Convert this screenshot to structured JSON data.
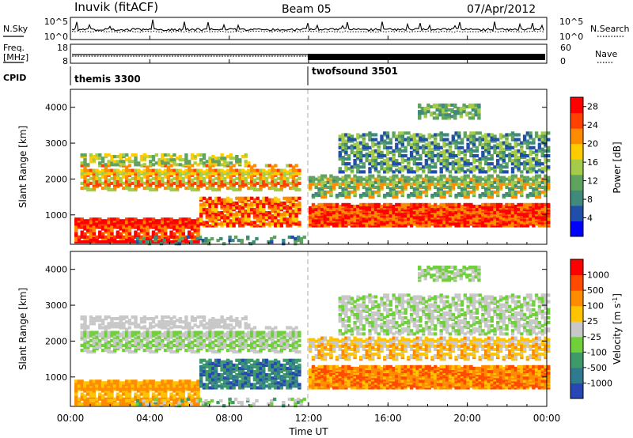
{
  "header": {
    "station": "Inuvik (fitACF)",
    "beam": "Beam 05",
    "date": "07/Apr/2012"
  },
  "labels": {
    "nsky": "N.Sky",
    "nsearch": "N.Search",
    "freq_line1": "Freq.",
    "freq_line2": "[MHz]",
    "nave": "Nave",
    "cpid": "CPID"
  },
  "noise_panel": {
    "left_ticks": [
      "10^5",
      "10^0"
    ],
    "right_ticks": [
      "10^5",
      "10^0"
    ]
  },
  "freq_panel": {
    "left_ticks": [
      "18",
      "8"
    ],
    "right_ticks": [
      "60",
      "0"
    ]
  },
  "cpid_panel": {
    "segments": [
      {
        "label": "themis 3300",
        "start_hour": 0
      },
      {
        "label": "twofsound 3501",
        "start_hour": 12
      }
    ]
  },
  "x_axis": {
    "label": "Time UT",
    "ticks": [
      "00:00",
      "04:00",
      "08:00",
      "12:00",
      "16:00",
      "20:00",
      "00:00"
    ],
    "tick_hours": [
      0,
      4,
      8,
      12,
      16,
      20,
      24
    ],
    "range_hours": [
      0,
      24
    ]
  },
  "chart_data": [
    {
      "type": "heatmap",
      "panel": "power",
      "ylabel": "Slant Range [km]",
      "yticks": [
        "1000",
        "2000",
        "3000",
        "4000"
      ],
      "ylim": [
        180,
        4500
      ],
      "colorbar": {
        "label": "Power [dB]",
        "ticks": [
          "4",
          "8",
          "12",
          "16",
          "20",
          "24",
          "28"
        ],
        "range": [
          0,
          30
        ],
        "colors": [
          "#0000ff",
          "#1f4fa8",
          "#3f8a7a",
          "#5fa35f",
          "#a4cc4a",
          "#ffcc00",
          "#ff8c00",
          "#ff4000",
          "#ff0000"
        ]
      }
    },
    {
      "type": "heatmap",
      "panel": "velocity",
      "ylabel": "Slant Range [km]",
      "yticks": [
        "1000",
        "2000",
        "3000",
        "4000"
      ],
      "ylim": [
        180,
        4500
      ],
      "colorbar": {
        "label": "Velocity [m s^-1]",
        "ticks": [
          "1000",
          "500",
          "100",
          "25",
          "-25",
          "-100",
          "-500",
          "-1000"
        ],
        "colors": [
          "#2846b4",
          "#2f7a8f",
          "#3f9a6a",
          "#6fd03a",
          "#c8c8c8",
          "#ffc400",
          "#ff8c00",
          "#ff4a00",
          "#ff0000"
        ]
      }
    }
  ]
}
